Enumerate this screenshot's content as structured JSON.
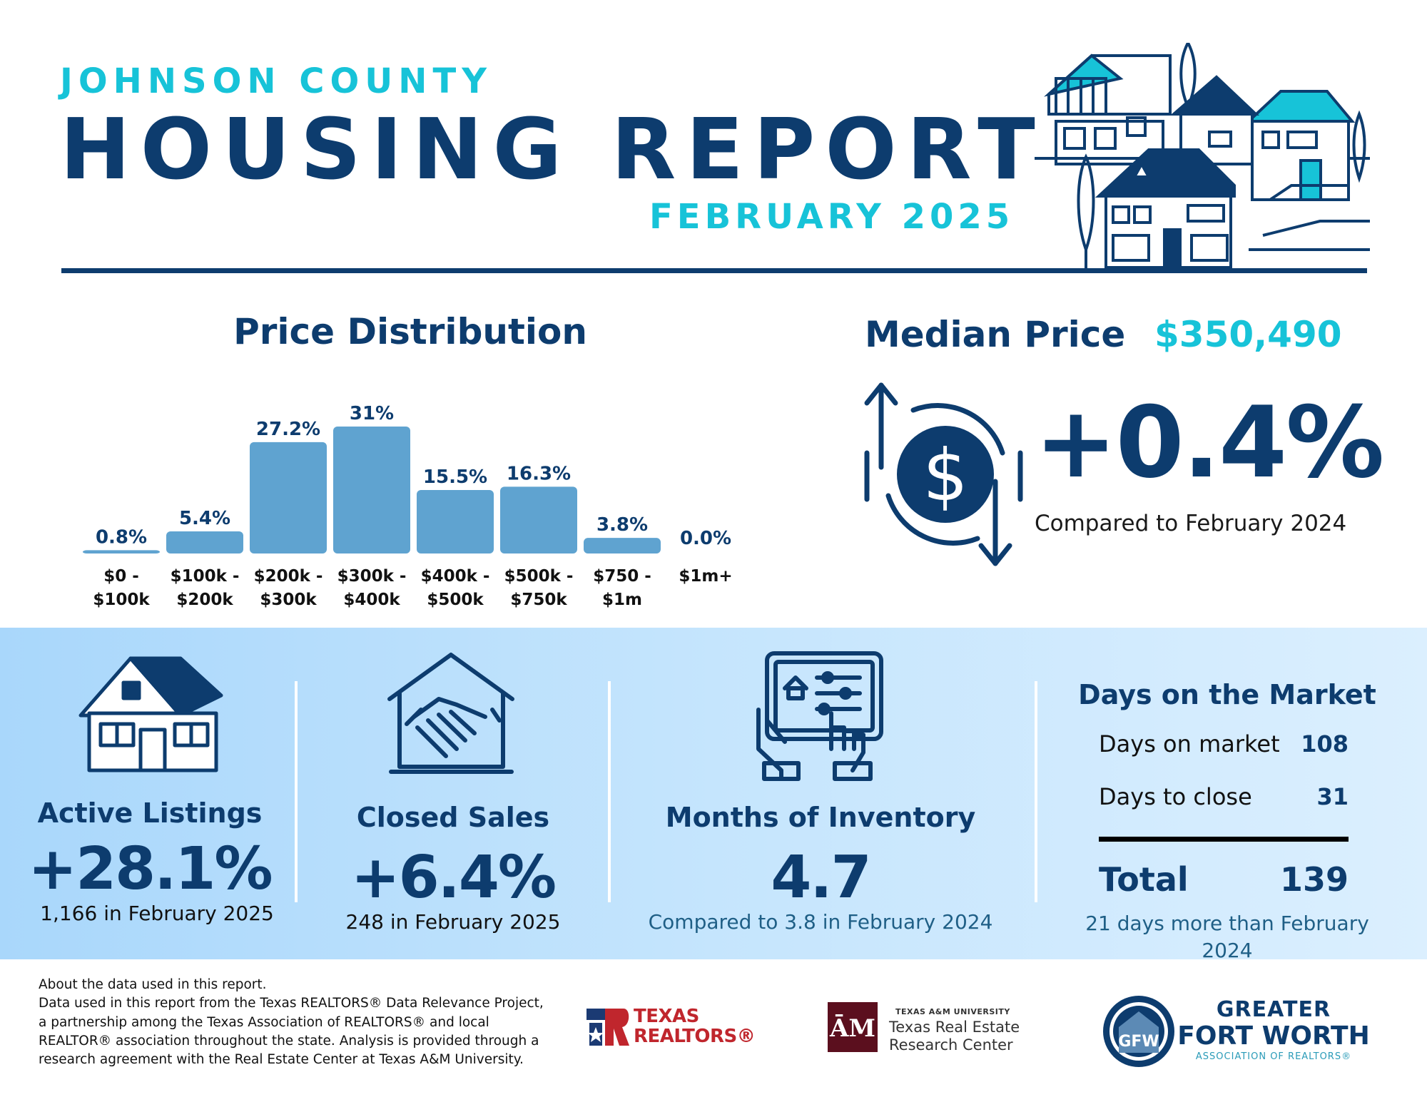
{
  "header": {
    "county": "JOHNSON COUNTY",
    "title": "HOUSING REPORT",
    "date": "FEBRUARY 2025"
  },
  "price_distribution": {
    "title": "Price Distribution"
  },
  "chart_data": {
    "type": "bar",
    "title": "Price Distribution",
    "categories": [
      [
        "$0 -",
        "$100k"
      ],
      [
        "$100k -",
        "$200k"
      ],
      [
        "$200k -",
        "$300k"
      ],
      [
        "$300k -",
        "$400k"
      ],
      [
        "$400k -",
        "$500k"
      ],
      [
        "$500k -",
        "$750k"
      ],
      [
        "$750 -",
        "$1m"
      ],
      [
        "$1m+",
        ""
      ]
    ],
    "values": [
      0.8,
      5.4,
      27.2,
      31,
      15.5,
      16.3,
      3.8,
      0.0
    ],
    "value_labels": [
      "0.8%",
      "5.4%",
      "27.2%",
      "31%",
      "15.5%",
      "16.3%",
      "3.8%",
      "0.0%"
    ],
    "ylim": [
      0,
      31
    ],
    "grid": false,
    "bar_color": "#5fa3d0"
  },
  "median_price": {
    "title": "Median Price",
    "value": "$350,490",
    "change": "+0.4%",
    "note": "Compared to February 2024"
  },
  "active_listings": {
    "label": "Active Listings",
    "change": "+28.1%",
    "note": "1,166 in February 2025",
    "icon": "house-icon"
  },
  "closed_sales": {
    "label": "Closed Sales",
    "change": "+6.4%",
    "note": "248 in February 2025",
    "icon": "handshake-icon"
  },
  "months_inventory": {
    "label": "Months of Inventory",
    "value": "4.7",
    "note": "Compared to 3.8 in February 2024",
    "icon": "tablet-icon"
  },
  "days_on_market": {
    "title": "Days on the Market",
    "rows": [
      {
        "label": "Days on market",
        "value": "108"
      },
      {
        "label": "Days to close",
        "value": "31"
      }
    ],
    "total_label": "Total",
    "total_value": "139",
    "note": "21 days more than February 2024"
  },
  "footer": {
    "about": "About the data used in this report.",
    "body": "Data used in this report from the Texas REALTORS® Data Relevance Project, a partnership among the Texas Association of REALTORS® and local REALTOR® association throughout the state. Analysis is provided through a research agreement with the Real Estate Center at Texas A&M University.",
    "logos": {
      "texas_realtors": [
        "TEXAS",
        "REALTORS®"
      ],
      "tamu": {
        "small": "TEXAS A&M UNIVERSITY",
        "line1": "Texas Real Estate",
        "line2": "Research Center"
      },
      "gfw": {
        "line1": "GREATER",
        "line2": "FORT WORTH",
        "line3": "ASSOCIATION OF REALTORS®"
      }
    }
  },
  "colors": {
    "navy": "#0d3c6e",
    "cyan": "#17c3d8",
    "bar": "#5fa3d0",
    "band": "#c5e5fd"
  }
}
